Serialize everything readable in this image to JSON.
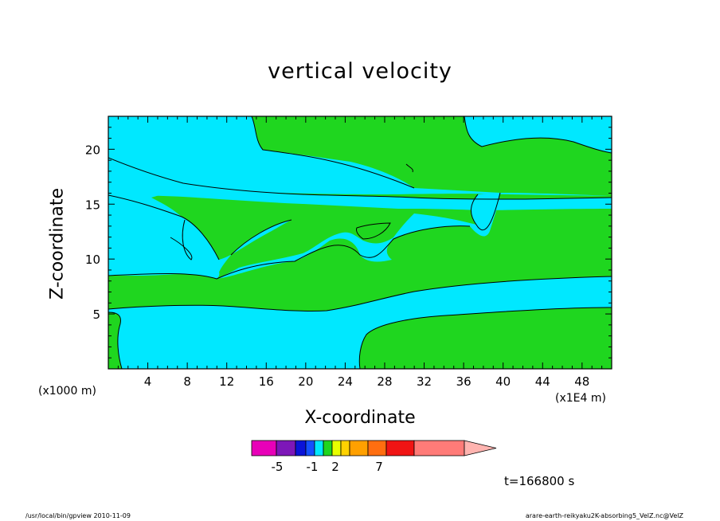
{
  "chart_data": {
    "type": "heatmap",
    "title": "vertical velocity",
    "xlabel": "X-coordinate",
    "ylabel": "Z-coordinate",
    "x_unit_left": "(x1000 m)",
    "x_unit_right": "(x1E4 m)",
    "xlim": [
      0,
      51
    ],
    "ylim": [
      0,
      23
    ],
    "x_ticks": [
      4,
      8,
      12,
      16,
      20,
      24,
      28,
      32,
      36,
      40,
      44,
      48
    ],
    "y_ticks": [
      5,
      10,
      15,
      20
    ],
    "colors": {
      "positive_region": "#1fd61f",
      "negative_region": "#00e8ff"
    },
    "colorbar": {
      "colors": [
        "#e800b8",
        "#7d17b8",
        "#0a13d8",
        "#1450ff",
        "#00e8ff",
        "#1fd61f",
        "#e8ff00",
        "#ffd200",
        "#ffa000",
        "#ff6e10",
        "#f01414",
        "#ff7b78"
      ],
      "extend_color": "#ffb4b0",
      "tick_labels": [
        "-5",
        "-1",
        "2",
        "7"
      ]
    },
    "time_readout": "t=166800 s"
  },
  "footer": {
    "left": "/usr/local/bin/gpview  2010-11-09",
    "right": "arare-earth-reikyaku2K-absorbing5_VelZ.nc@VelZ"
  }
}
